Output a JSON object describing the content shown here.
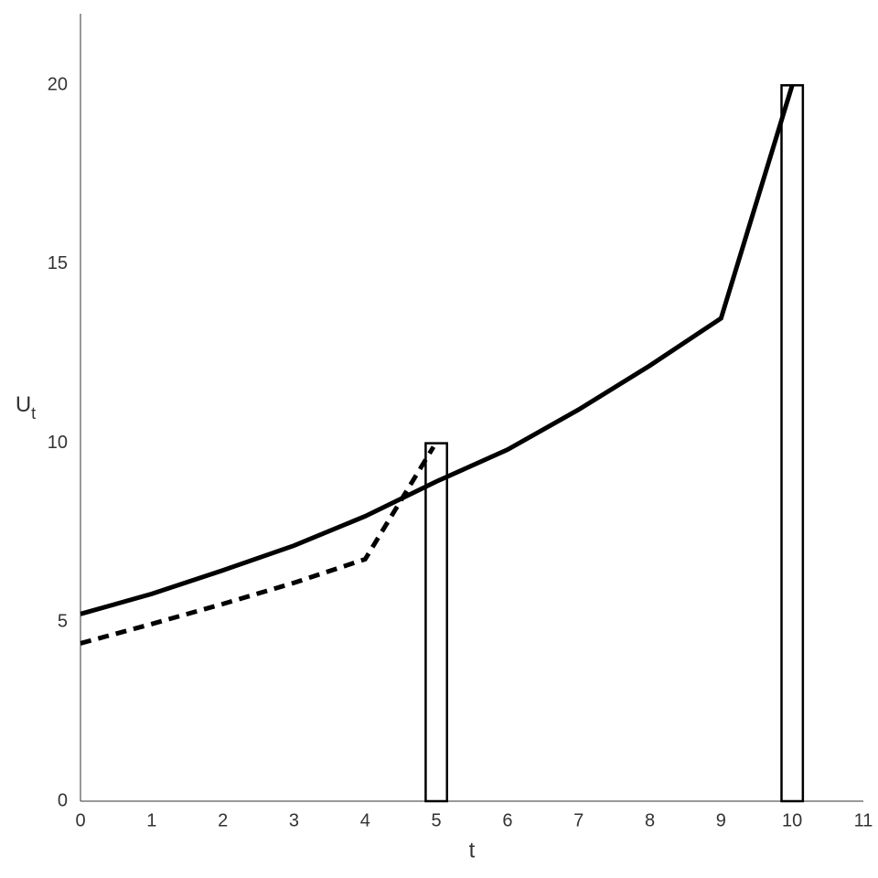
{
  "chart_data": {
    "type": "combo",
    "xlabel": "t",
    "ylabel": {
      "text": "U",
      "subscript": "t"
    },
    "xlim": [
      0,
      11
    ],
    "ylim": [
      0,
      22
    ],
    "xticks": [
      0,
      1,
      2,
      3,
      4,
      5,
      6,
      7,
      8,
      9,
      10,
      11
    ],
    "yticks": [
      0,
      5,
      10,
      15,
      20
    ],
    "grid": false,
    "series": [
      {
        "type": "line",
        "dash": "solid",
        "color": "#000000",
        "x": [
          0,
          1,
          2,
          3,
          4,
          5,
          6,
          7,
          8,
          9,
          10
        ],
        "values": [
          5.23,
          5.79,
          6.45,
          7.14,
          7.96,
          8.93,
          9.82,
          10.94,
          12.17,
          13.49,
          20
        ]
      },
      {
        "type": "line",
        "dash": "dashed",
        "color": "#000000",
        "x": [
          0,
          1,
          2,
          3,
          4,
          4.96
        ],
        "values": [
          4.41,
          4.95,
          5.51,
          6.1,
          6.76,
          9.9
        ]
      },
      {
        "type": "bar",
        "color": "#000000",
        "width": 0.3,
        "x": [
          5,
          10
        ],
        "values": [
          10,
          20
        ]
      }
    ]
  }
}
